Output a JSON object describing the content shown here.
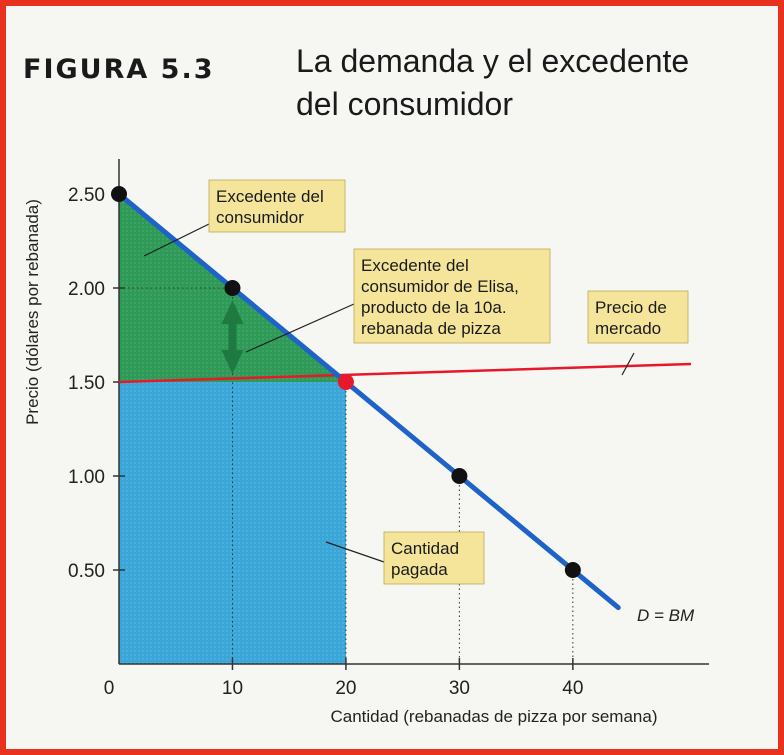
{
  "figure": {
    "label": "FIGURA  5.3",
    "title_line1": "La demanda y el excedente",
    "title_line2": "del consumidor"
  },
  "chart_data": {
    "type": "line",
    "title": "La demanda y el excedente del consumidor",
    "xlabel": "Cantidad (rebanadas de pizza por semana)",
    "ylabel": "Precio (dólares por rebanada)",
    "xlim": [
      0,
      52
    ],
    "ylim": [
      0,
      2.5
    ],
    "x_ticks": [
      "0",
      "10",
      "20",
      "30",
      "40"
    ],
    "y_ticks": [
      "0.50",
      "1.00",
      "1.50",
      "2.00",
      "2.50"
    ],
    "highlight_x_tick": "20",
    "highlight_y_tick": "1.50",
    "demand": {
      "name": "D = BM",
      "x": [
        0,
        44
      ],
      "y": [
        2.5,
        0.3
      ],
      "points": [
        {
          "x": 0,
          "y": 2.5
        },
        {
          "x": 10,
          "y": 2.0
        },
        {
          "x": 30,
          "y": 1.0
        },
        {
          "x": 40,
          "y": 0.5
        }
      ]
    },
    "market_price": {
      "name": "Precio de mercado",
      "value": 1.5,
      "equilibrium": {
        "x": 20,
        "y": 1.5
      }
    },
    "elisa_arrow": {
      "x": 10,
      "from": 2.0,
      "to": 1.5
    },
    "annotations": {
      "consumer_surplus": [
        "Excedente del",
        "consumidor"
      ],
      "elisa_surplus": [
        "Excedente del",
        "consumidor de Elisa,",
        "producto de la 10a.",
        "rebanada de pizza"
      ],
      "market_price": [
        "Precio de",
        "mercado"
      ],
      "amount_paid": [
        "Cantidad",
        "pagada"
      ]
    },
    "colors": {
      "surplus": "#2f9a57",
      "paid": "#3aa6d8",
      "demand": "#1e63c8",
      "price": "#e8182c",
      "highlight": "#c8102e",
      "callout": "#f5e59a",
      "arrow": "#1f7a42"
    }
  }
}
